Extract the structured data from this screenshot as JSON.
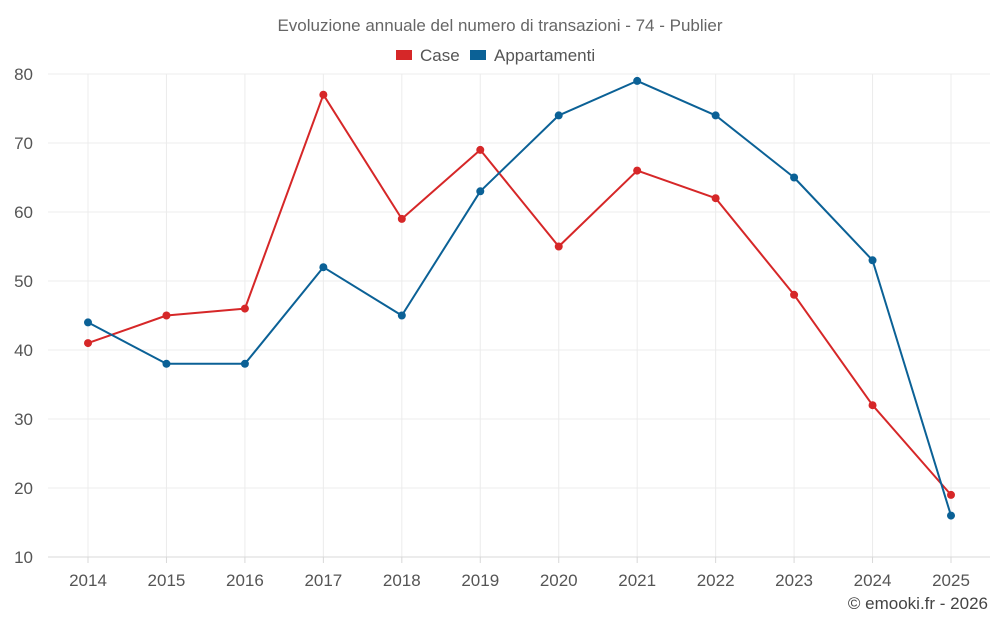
{
  "chart_data": {
    "type": "line",
    "title": "Evoluzione annuale del numero di transazioni - 74 - Publier",
    "categories": [
      "2014",
      "2015",
      "2016",
      "2017",
      "2018",
      "2019",
      "2020",
      "2021",
      "2022",
      "2023",
      "2024",
      "2025"
    ],
    "series": [
      {
        "name": "Case",
        "color": "#d62728",
        "values": [
          41,
          45,
          46,
          77,
          59,
          69,
          55,
          66,
          62,
          48,
          32,
          19
        ]
      },
      {
        "name": "Appartamenti",
        "color": "#0b6196",
        "values": [
          44,
          38,
          38,
          52,
          45,
          63,
          74,
          79,
          74,
          65,
          53,
          16
        ]
      }
    ],
    "ylim": [
      10,
      80
    ],
    "yticks": [
      10,
      20,
      30,
      40,
      50,
      60,
      70,
      80
    ],
    "xlabel": "",
    "ylabel": "",
    "grid": true,
    "legend": "top-center"
  },
  "credit": "© emooki.fr - 2026"
}
